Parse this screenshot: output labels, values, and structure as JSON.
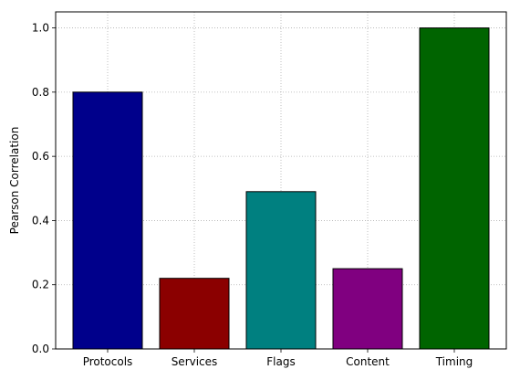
{
  "chart_data": {
    "type": "bar",
    "categories": [
      "Protocols",
      "Services",
      "Flags",
      "Content",
      "Timing"
    ],
    "values": [
      0.8,
      0.22,
      0.49,
      0.25,
      1.0
    ],
    "colors": [
      "#00008b",
      "#8b0000",
      "#008080",
      "#800080",
      "#006400"
    ],
    "bar_edge_color": "#000000",
    "xlabel": "",
    "ylabel": "Pearson Correlation",
    "ylim": [
      0.0,
      1.05
    ],
    "yticks": [
      0.0,
      0.2,
      0.4,
      0.6,
      0.8,
      1.0
    ],
    "ytick_labels": [
      "0.0",
      "0.2",
      "0.4",
      "0.6",
      "0.8",
      "1.0"
    ],
    "grid": true,
    "grid_style": "dotted"
  }
}
